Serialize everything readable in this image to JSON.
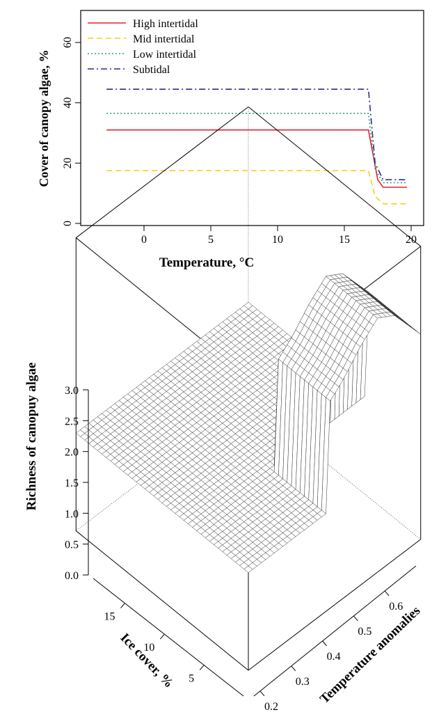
{
  "chart_data": [
    {
      "type": "line",
      "title": "",
      "xlabel": "Temperature, °C",
      "ylabel": "Cover of canopy algae, %",
      "xlim": [
        -5,
        20
      ],
      "ylim": [
        0,
        70
      ],
      "xticks": [
        "0",
        "5",
        "10",
        "15",
        "20"
      ],
      "yticks": [
        "0",
        "20",
        "40",
        "60"
      ],
      "legend_position": "top-left",
      "series": [
        {
          "name": "High intertidal",
          "color": "#e8202a",
          "dash": "solid",
          "x": [
            -2.8,
            16.8,
            17.5,
            17.9,
            19.7
          ],
          "y": [
            31,
            31,
            14.5,
            12,
            12
          ]
        },
        {
          "name": "Mid intertidal",
          "color": "#f0d21c",
          "dash": "dashed",
          "x": [
            -2.8,
            16.8,
            17.3,
            17.9,
            19.7
          ],
          "y": [
            17.5,
            17.5,
            9,
            6.5,
            6.5
          ]
        },
        {
          "name": "Low intertidal",
          "color": "#2f9a78",
          "dash": "dotted",
          "x": [
            -2.8,
            16.8,
            17.3,
            17.9,
            19.7
          ],
          "y": [
            36.5,
            36.5,
            18,
            13.5,
            13.5
          ]
        },
        {
          "name": "Subtidal",
          "color": "#2c2c8c",
          "dash": "dashdot",
          "x": [
            -2.8,
            16.8,
            17.3,
            17.9,
            19.7
          ],
          "y": [
            44.5,
            44.5,
            20,
            14.5,
            14.5
          ]
        }
      ]
    },
    {
      "type": "surface3d",
      "title": "",
      "xlabel": "Ice cover, %",
      "ylabel": "Temperature anomalies",
      "zlabel": "Richness of canopuy algae",
      "xlim": [
        0,
        19
      ],
      "ylim": [
        0.18,
        0.7
      ],
      "zlim": [
        0,
        3
      ],
      "xticks": [
        "5",
        "10",
        "15"
      ],
      "yticks": [
        "0.2",
        "0.3",
        "0.4",
        "0.5",
        "0.6"
      ],
      "zticks": [
        "0.0",
        "0.5",
        "1.0",
        "1.5",
        "2.0",
        "2.5",
        "3.0"
      ],
      "surface": {
        "base_value": 1.0,
        "raised_region": {
          "ice_cover_max": 6,
          "temperature_anomaly_min": 0.42
        },
        "raised_profile": [
          {
            "temperature_anomaly": 0.42,
            "value": 2.1
          },
          {
            "temperature_anomaly": 0.47,
            "value": 2.25
          },
          {
            "temperature_anomaly": 0.52,
            "value": 2.45
          },
          {
            "temperature_anomaly": 0.57,
            "value": 2.6
          },
          {
            "temperature_anomaly": 0.62,
            "value": 2.5
          },
          {
            "temperature_anomaly": 0.66,
            "value": 2.3
          },
          {
            "temperature_anomaly": 0.7,
            "value": 2.1
          }
        ]
      }
    }
  ]
}
